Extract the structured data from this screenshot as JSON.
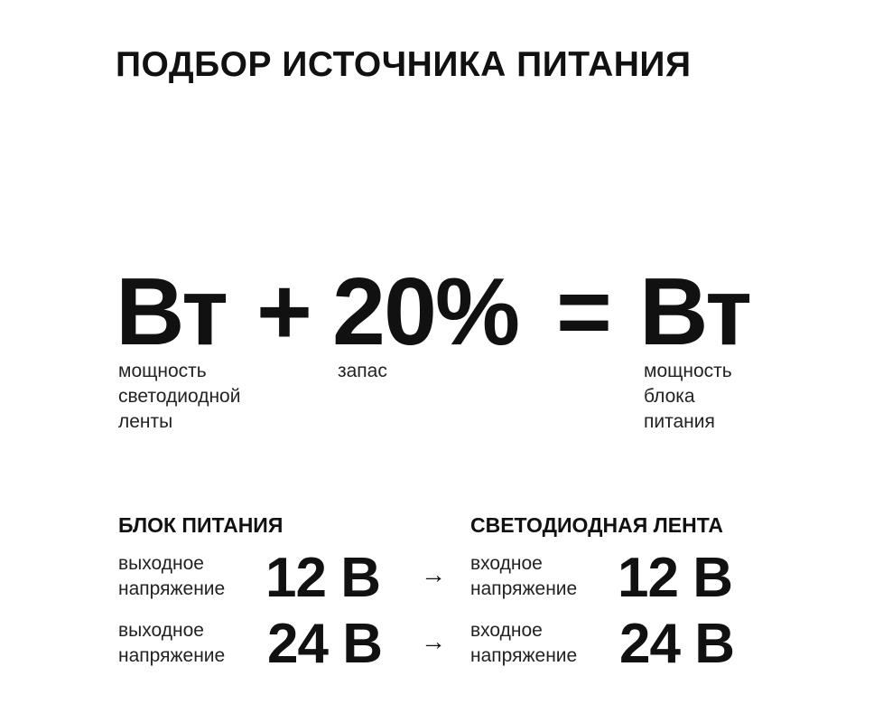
{
  "title": "ПОДБОР ИСТОЧНИКА ПИТАНИЯ",
  "formula": {
    "term1": "Вт",
    "plus": "+",
    "term2": "20%",
    "equals": "=",
    "result": "Вт",
    "term1_label": [
      "мощность",
      "светодиодной",
      "ленты"
    ],
    "term2_label": [
      "запас"
    ],
    "result_label": [
      "мощность",
      "блока",
      "питания"
    ]
  },
  "psu": {
    "header": "БЛОК ПИТАНИЯ",
    "rows": [
      {
        "label": [
          "выходное",
          "напряжение"
        ],
        "value": "12 В"
      },
      {
        "label": [
          "выходное",
          "напряжение"
        ],
        "value": "24 В"
      }
    ]
  },
  "strip": {
    "header": "СВЕТОДИОДНАЯ ЛЕНТА",
    "rows": [
      {
        "label": [
          "входное",
          "напряжение"
        ],
        "value": "12 В"
      },
      {
        "label": [
          "входное",
          "напряжение"
        ],
        "value": "24 В"
      }
    ]
  },
  "arrow": "→"
}
